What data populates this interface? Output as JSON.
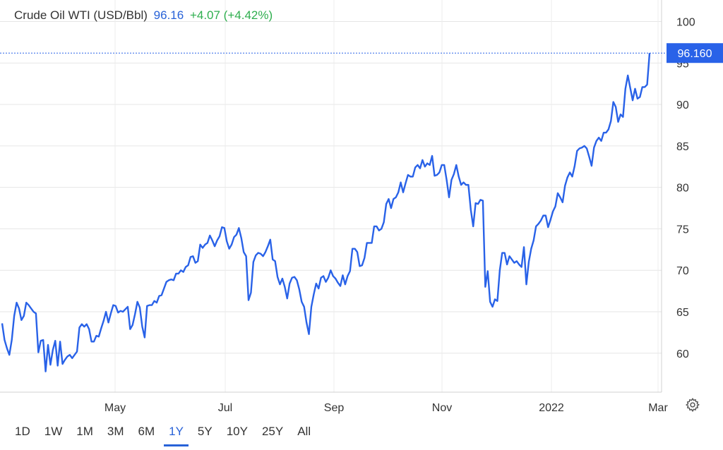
{
  "header": {
    "name": "Crude Oil WTI (USD/Bbl)",
    "price": "96.16",
    "change": "+4.07 (+4.42%)"
  },
  "colors": {
    "line": "#2962e8",
    "price_tag": "#2962e8",
    "change_positive": "#2eae4e",
    "grid": "#e6e6e6"
  },
  "ranges": [
    "1D",
    "1W",
    "1M",
    "3M",
    "6M",
    "1Y",
    "5Y",
    "10Y",
    "25Y",
    "All"
  ],
  "active_range": "1Y",
  "settings_icon": "gear-icon",
  "chart_data": {
    "type": "line",
    "title": "Crude Oil WTI (USD/Bbl)",
    "last_value_label": "96.160",
    "y_ticks": [
      60,
      65,
      70,
      75,
      80,
      85,
      90,
      95,
      100
    ],
    "y_tick_labels": [
      "60",
      "65",
      "70",
      "75",
      "80",
      "85",
      "90",
      "95",
      "100"
    ],
    "ylim": [
      55.3,
      102.6
    ],
    "y_axis_side": "right",
    "x_ticks": [
      "May",
      "Jul",
      "Sep",
      "Nov",
      "2022",
      "Mar"
    ],
    "grid": true,
    "series": [
      {
        "values": [
          63.6,
          61.6,
          60.6,
          59.8,
          61.6,
          64.5,
          66.1,
          65.4,
          64.0,
          64.5,
          66.1,
          65.8,
          65.4,
          65.0,
          64.8,
          60.1,
          61.5,
          61.6,
          57.8,
          61.0,
          58.6,
          60.4,
          61.5,
          58.5,
          61.4,
          58.7,
          59.2,
          59.6,
          59.8,
          59.4,
          59.8,
          60.2,
          63.1,
          63.5,
          63.2,
          63.5,
          62.9,
          61.4,
          61.4,
          62.1,
          62.0,
          63.0,
          63.9,
          65.0,
          63.7,
          64.8,
          65.8,
          65.7,
          64.9,
          65.1,
          65.0,
          65.3,
          65.6,
          62.9,
          63.4,
          64.7,
          66.2,
          65.5,
          63.2,
          61.9,
          65.7,
          65.8,
          65.8,
          66.3,
          66.1,
          66.9,
          67.0,
          67.8,
          68.6,
          68.8,
          68.9,
          68.8,
          69.6,
          69.6,
          70.0,
          69.8,
          70.4,
          70.6,
          71.6,
          71.7,
          70.9,
          71.1,
          73.1,
          72.7,
          73.1,
          73.3,
          74.2,
          73.6,
          72.9,
          73.6,
          74.1,
          75.2,
          75.1,
          73.5,
          72.6,
          73.1,
          74.0,
          74.3,
          75.1,
          73.9,
          72.2,
          71.7,
          66.4,
          67.3,
          71.0,
          71.8,
          72.1,
          72.0,
          71.7,
          72.2,
          72.9,
          73.7,
          71.3,
          71.1,
          69.2,
          68.3,
          69.0,
          68.0,
          66.6,
          68.4,
          69.1,
          69.2,
          68.8,
          67.7,
          66.2,
          65.6,
          63.7,
          62.3,
          65.6,
          67.1,
          68.4,
          67.8,
          69.1,
          69.3,
          68.6,
          69.1,
          70.0,
          69.3,
          69.0,
          68.5,
          68.1,
          69.4,
          68.3,
          69.3,
          69.9,
          72.6,
          72.6,
          72.2,
          70.5,
          70.6,
          71.5,
          73.3,
          73.3,
          73.3,
          75.3,
          75.3,
          74.8,
          75.0,
          75.8,
          78.0,
          78.6,
          77.5,
          78.6,
          78.8,
          79.4,
          80.6,
          79.4,
          80.5,
          81.5,
          81.3,
          81.3,
          82.4,
          82.7,
          82.3,
          83.3,
          82.5,
          82.9,
          82.7,
          83.8,
          81.4,
          81.5,
          81.8,
          82.7,
          82.7,
          80.9,
          78.8,
          80.9,
          81.6,
          82.7,
          81.3,
          80.3,
          80.6,
          80.3,
          80.3,
          77.3,
          75.3,
          78.1,
          78.0,
          78.5,
          78.4,
          68.0,
          69.9,
          66.2,
          65.6,
          66.5,
          66.3,
          70.0,
          72.1,
          72.1,
          70.7,
          71.7,
          71.3,
          70.9,
          71.1,
          70.7,
          70.4,
          72.8,
          68.3,
          71.0,
          72.6,
          73.6,
          75.3,
          75.6,
          76.0,
          76.6,
          76.6,
          75.2,
          76.1,
          77.1,
          77.7,
          79.3,
          78.8,
          78.2,
          80.2,
          81.2,
          81.8,
          81.3,
          82.6,
          84.4,
          84.7,
          84.8,
          85.0,
          84.7,
          83.7,
          82.6,
          84.8,
          85.6,
          86.0,
          85.6,
          86.6,
          86.6,
          87.0,
          88.0,
          90.3,
          89.7,
          87.9,
          88.8,
          88.5,
          91.9,
          93.5,
          92.0,
          90.5,
          91.9,
          90.7,
          90.9,
          92.1,
          92.1,
          92.4,
          96.2
        ]
      }
    ]
  }
}
